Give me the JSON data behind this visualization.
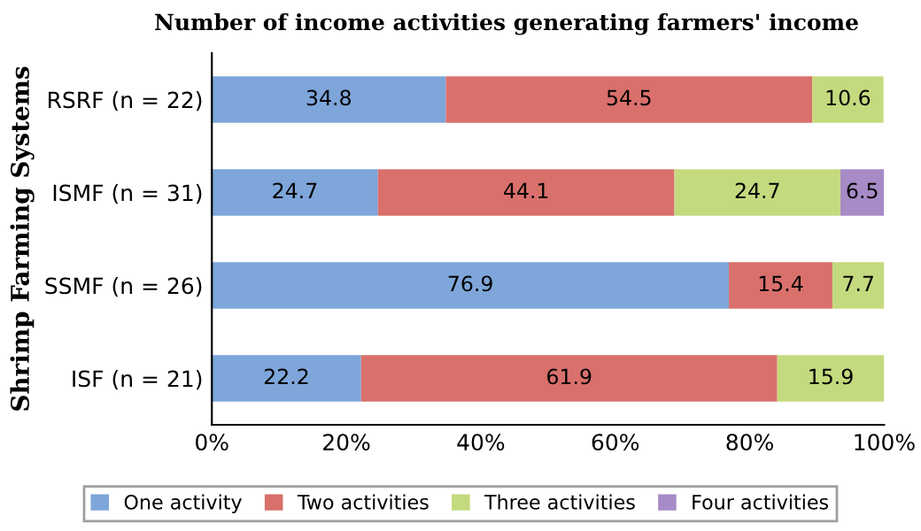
{
  "chart_data": {
    "type": "bar",
    "orientation": "horizontal",
    "stacked": true,
    "title": "Number of income activities generating farmers' income",
    "ylabel": "Shrimp Farming Systems",
    "categories": [
      "RSRF (n = 22)",
      "ISMF (n = 31)",
      "SSMF (n = 26)",
      "ISF (n = 21)"
    ],
    "series": [
      {
        "name": "One activity",
        "color": "#7ea6da",
        "values": [
          34.8,
          24.7,
          76.9,
          22.2
        ]
      },
      {
        "name": "Two activities",
        "color": "#d9706c",
        "values": [
          54.5,
          44.1,
          15.4,
          61.9
        ]
      },
      {
        "name": "Three activities",
        "color": "#c4da7e",
        "values": [
          10.6,
          24.7,
          7.7,
          15.9
        ]
      },
      {
        "name": "Four activities",
        "color": "#a68bc6",
        "values": [
          null,
          6.5,
          null,
          null
        ]
      }
    ],
    "xlim": [
      0,
      100
    ],
    "xticks": [
      {
        "value": 0,
        "label": "0%"
      },
      {
        "value": 20,
        "label": "20%"
      },
      {
        "value": 40,
        "label": "40%"
      },
      {
        "value": 60,
        "label": "60%"
      },
      {
        "value": 80,
        "label": "80%"
      },
      {
        "value": 100,
        "label": "100%"
      }
    ],
    "data_labels": true,
    "legend": "bottom",
    "grid": false
  }
}
